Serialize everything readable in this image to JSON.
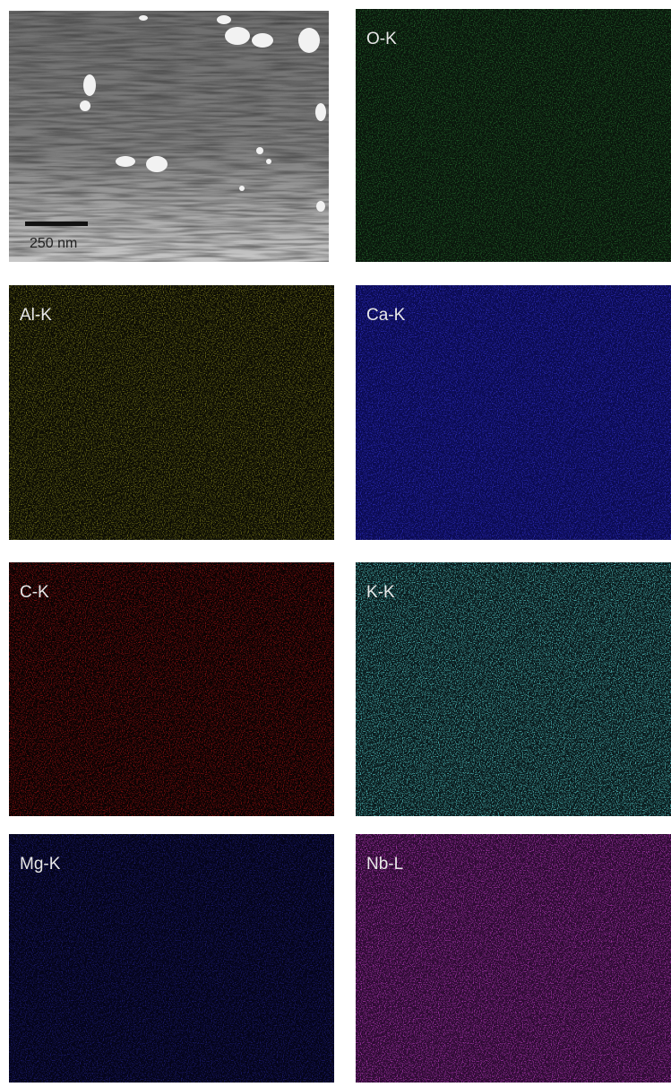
{
  "sem": {
    "scale_bar": "250 nm"
  },
  "maps": [
    {
      "label": "O-K"
    },
    {
      "label": "Al-K"
    },
    {
      "label": "Ca-K"
    },
    {
      "label": "C-K"
    },
    {
      "label": "K-K"
    },
    {
      "label": "Mg-K"
    },
    {
      "label": "Nb-L"
    }
  ]
}
